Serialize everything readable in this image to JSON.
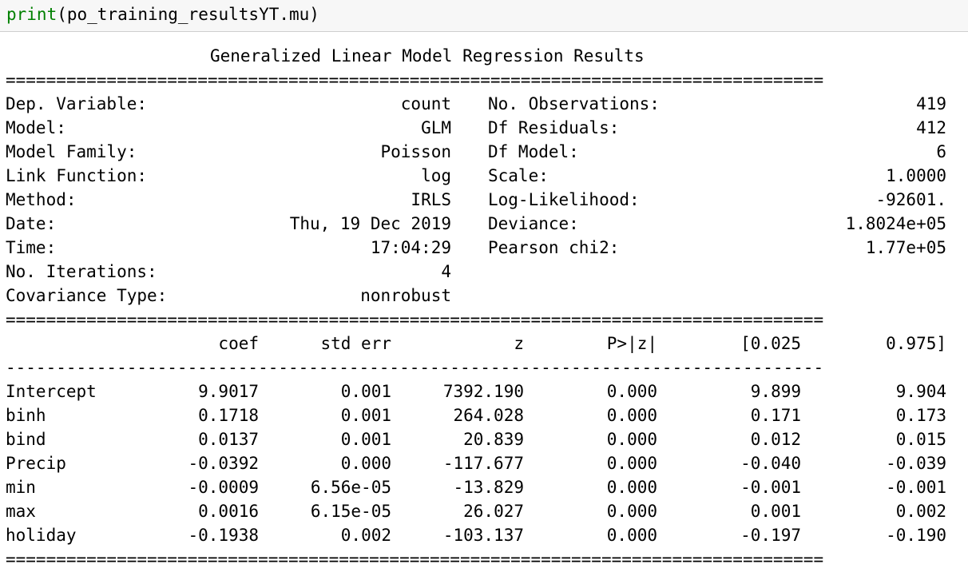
{
  "code": {
    "func": "print",
    "args": "(po_training_resultsYT.mu)"
  },
  "summary": {
    "title": "Generalized Linear Model Regression Results",
    "rule_double": "=================================================================================",
    "rule_single": "---------------------------------------------------------------------------------",
    "left_info": [
      {
        "label": "Dep. Variable:",
        "value": "count"
      },
      {
        "label": "Model:",
        "value": "GLM"
      },
      {
        "label": "Model Family:",
        "value": "Poisson"
      },
      {
        "label": "Link Function:",
        "value": "log"
      },
      {
        "label": "Method:",
        "value": "IRLS"
      },
      {
        "label": "Date:",
        "value": "Thu, 19 Dec 2019"
      },
      {
        "label": "Time:",
        "value": "17:04:29"
      },
      {
        "label": "No. Iterations:",
        "value": "4"
      },
      {
        "label": "Covariance Type:",
        "value": "nonrobust"
      }
    ],
    "right_info": [
      {
        "label": "No. Observations:",
        "value": "419"
      },
      {
        "label": "Df Residuals:",
        "value": "412"
      },
      {
        "label": "Df Model:",
        "value": "6"
      },
      {
        "label": "Scale:",
        "value": "1.0000"
      },
      {
        "label": "Log-Likelihood:",
        "value": "-92601."
      },
      {
        "label": "Deviance:",
        "value": "1.8024e+05"
      },
      {
        "label": "Pearson chi2:",
        "value": "1.77e+05"
      }
    ],
    "coef_headers": [
      "coef",
      "std err",
      "z",
      "P>|z|",
      "[0.025",
      "0.975]"
    ],
    "coef_rows": [
      {
        "name": "Intercept",
        "vals": [
          "9.9017",
          "0.001",
          "7392.190",
          "0.000",
          "9.899",
          "9.904"
        ]
      },
      {
        "name": "binh",
        "vals": [
          "0.1718",
          "0.001",
          "264.028",
          "0.000",
          "0.171",
          "0.173"
        ]
      },
      {
        "name": "bind",
        "vals": [
          "0.0137",
          "0.001",
          "20.839",
          "0.000",
          "0.012",
          "0.015"
        ]
      },
      {
        "name": "Precip",
        "vals": [
          "-0.0392",
          "0.000",
          "-117.677",
          "0.000",
          "-0.040",
          "-0.039"
        ]
      },
      {
        "name": "min",
        "vals": [
          "-0.0009",
          "6.56e-05",
          "-13.829",
          "0.000",
          "-0.001",
          "-0.001"
        ]
      },
      {
        "name": "max",
        "vals": [
          "0.0016",
          "6.15e-05",
          "26.027",
          "0.000",
          "0.001",
          "0.002"
        ]
      },
      {
        "name": "holiday",
        "vals": [
          "-0.1938",
          "0.002",
          "-103.137",
          "0.000",
          "-0.197",
          "-0.190"
        ]
      }
    ]
  }
}
